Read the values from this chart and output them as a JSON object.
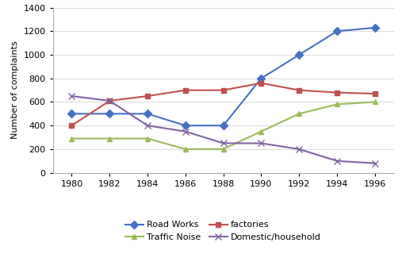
{
  "years": [
    1980,
    1982,
    1984,
    1986,
    1988,
    1990,
    1992,
    1994,
    1996
  ],
  "road_works": [
    500,
    500,
    500,
    400,
    400,
    800,
    1000,
    1200,
    1230
  ],
  "factories": [
    400,
    610,
    650,
    700,
    700,
    760,
    700,
    680,
    670
  ],
  "traffic_noise": [
    290,
    290,
    290,
    200,
    200,
    350,
    500,
    580,
    600
  ],
  "domestic_household": [
    650,
    610,
    400,
    350,
    250,
    250,
    200,
    100,
    80
  ],
  "road_works_color": "#4472C4",
  "factories_color": "#C0504D",
  "traffic_noise_color": "#9BBB59",
  "domestic_color": "#8064A2",
  "ylabel": "Number of complaints",
  "ylim": [
    0,
    1400
  ],
  "yticks": [
    0,
    200,
    400,
    600,
    800,
    1000,
    1200,
    1400
  ],
  "legend_labels": [
    "Road Works",
    "factories",
    "Traffic Noise",
    "Domestic/household"
  ],
  "background_color": "#FFFFFF",
  "marker_road": "D",
  "marker_factories": "s",
  "marker_traffic": "^",
  "marker_domestic": "x",
  "xlim_left": 1979,
  "xlim_right": 1997
}
